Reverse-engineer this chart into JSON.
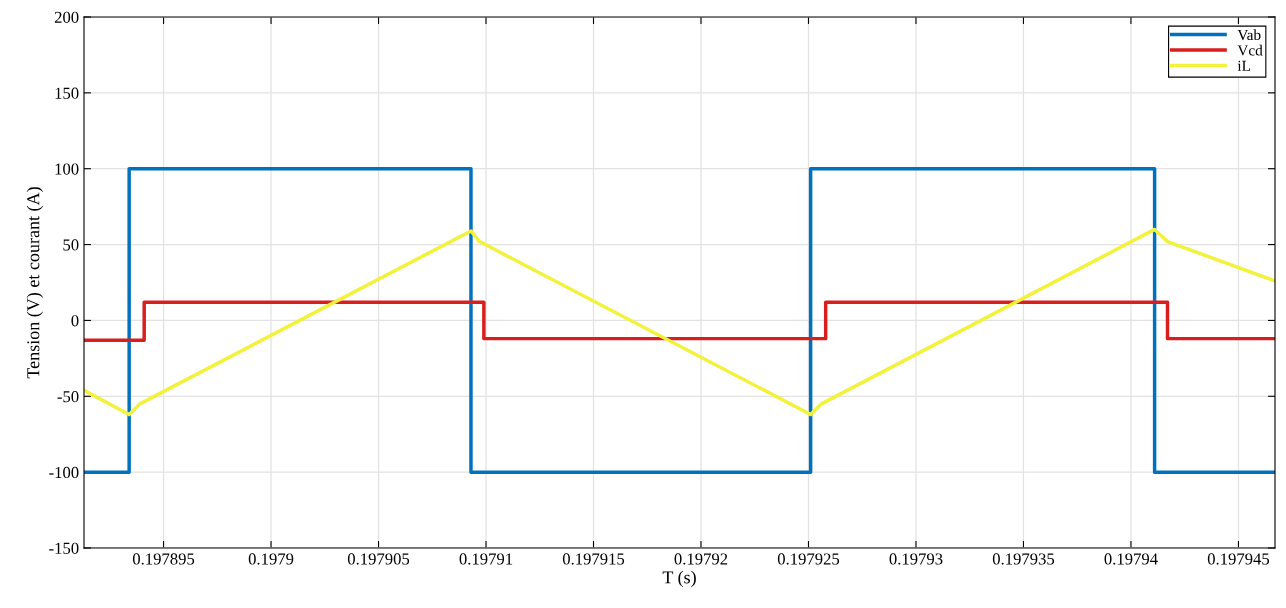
{
  "chart_data": {
    "type": "line",
    "xlabel": "T (s)",
    "ylabel": "Tension (V) et courant (A)",
    "xlim": [
      0.1978913,
      0.1979467
    ],
    "xticks": [
      0.197895,
      0.1979,
      0.197905,
      0.19791,
      0.197915,
      0.19792,
      0.197925,
      0.19793,
      0.197935,
      0.19794,
      0.197945
    ],
    "ylim": [
      -150,
      200
    ],
    "yticks": [
      -150,
      -100,
      -50,
      0,
      50,
      100,
      150,
      200
    ],
    "grid": true,
    "legend": "top right",
    "line_style": "solid",
    "marker": "none",
    "series": [
      {
        "name": "Vab",
        "type": "step",
        "color": "#0072bd",
        "x": [
          0.1978913,
          0.1978934,
          0.1979093,
          0.1979251,
          0.1979411,
          0.1979467
        ],
        "values": [
          -100,
          100,
          -100,
          100,
          -100,
          -100
        ]
      },
      {
        "name": "Vcd",
        "type": "step",
        "color": "#d91e1e",
        "x": [
          0.1978913,
          0.1978941,
          0.1979099,
          0.1979258,
          0.1979417,
          0.1979467
        ],
        "values": [
          -13,
          12,
          -12,
          12,
          -12,
          -12
        ]
      },
      {
        "name": "iL",
        "color": "#f2f23a",
        "x": [
          0.1978913,
          0.1978934,
          0.1978939,
          0.1979093,
          0.1979097,
          0.1979251,
          0.1979256,
          0.1979411,
          0.1979417,
          0.1979467
        ],
        "values": [
          -46,
          -62,
          -55,
          59,
          52,
          -62,
          -55,
          60,
          52,
          26
        ]
      }
    ]
  }
}
